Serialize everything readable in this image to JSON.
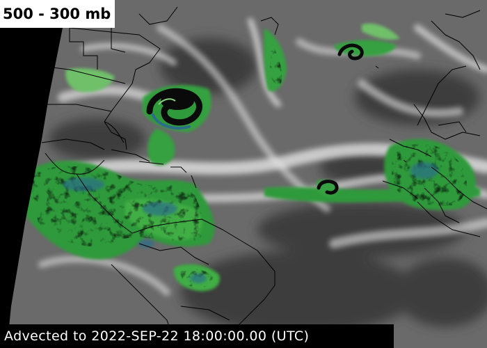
{
  "title": "500 - 300 mb",
  "footer": "Advected to 2022-SEP-22 18:00:00.00 (UTC)",
  "product": "water-vapor-imagery",
  "colors": {
    "background_gray": "#6a6a6a",
    "dry_dark": "#3c3c3c",
    "moist_white": "#e8e8e8",
    "moist_green": "#2f9a3a",
    "moist_light_green": "#7ccb74",
    "deep_blue": "#2c6e8a",
    "very_deep_black": "#050505",
    "coastline": "#000000",
    "disk_edge": "#000000"
  }
}
